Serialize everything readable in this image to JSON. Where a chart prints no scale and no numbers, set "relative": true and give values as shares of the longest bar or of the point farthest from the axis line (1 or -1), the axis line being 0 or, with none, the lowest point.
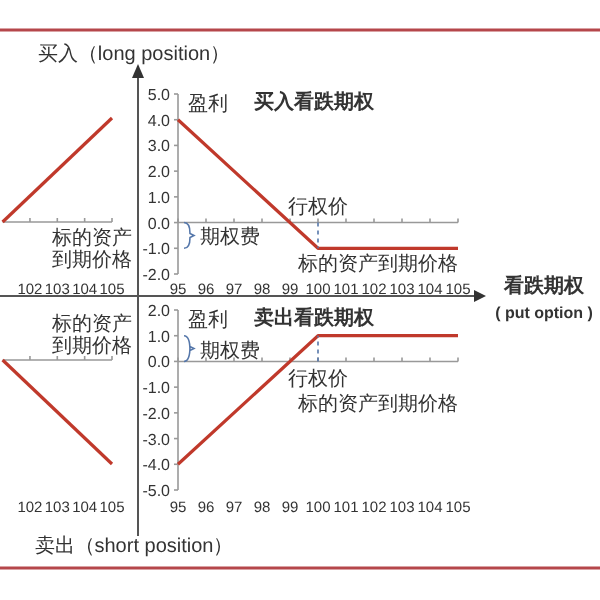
{
  "chart_data": [
    {
      "type": "other",
      "annotations": [
        "买入（long position）",
        "卖出（short position）",
        "看跌期权",
        "( put option )"
      ]
    },
    {
      "type": "line",
      "relative": true,
      "x": [
        101,
        105
      ],
      "xlim": [
        101,
        105
      ],
      "xticks": [
        102,
        103,
        104,
        105
      ],
      "xlabel": "标的资产到期价格",
      "series": [
        {
          "color": "#c0392b",
          "values": [
            0,
            1
          ]
        }
      ]
    },
    {
      "type": "line",
      "title": "买入看跌期权",
      "ylabel": "盈利",
      "xlabel": "标的资产到期价格",
      "x": [
        95,
        100,
        105
      ],
      "xlim": [
        95,
        105
      ],
      "xticks": [
        95,
        96,
        97,
        98,
        99,
        100,
        101,
        102,
        103,
        104,
        105
      ],
      "ylim": [
        -2,
        5
      ],
      "yticks": [
        {
          "value": 5,
          "label": "5.0"
        },
        {
          "value": 4,
          "label": "4.0"
        },
        {
          "value": 3,
          "label": "3.0"
        },
        {
          "value": 2,
          "label": "2.0"
        },
        {
          "value": 1,
          "label": "1.0"
        },
        {
          "value": 0,
          "label": "0.0"
        },
        {
          "value": -1,
          "label": "-1.0"
        },
        {
          "value": -2,
          "label": "-2.0"
        }
      ],
      "series": [
        {
          "color": "#c0392b",
          "values": [
            4,
            -1,
            -1
          ]
        }
      ],
      "annotations": [
        "行权价",
        "期权费"
      ]
    },
    {
      "type": "line",
      "relative": true,
      "x": [
        101,
        105
      ],
      "xlim": [
        101,
        105
      ],
      "xticks": [
        102,
        103,
        104,
        105
      ],
      "xlabel": "标的资产到期价格",
      "series": [
        {
          "color": "#c0392b",
          "values": [
            0,
            -1
          ]
        }
      ]
    },
    {
      "type": "line",
      "title": "卖出看跌期权",
      "ylabel": "盈利",
      "xlabel": "标的资产到期价格",
      "x": [
        95,
        100,
        105
      ],
      "xlim": [
        95,
        105
      ],
      "xticks": [
        95,
        96,
        97,
        98,
        99,
        100,
        101,
        102,
        103,
        104,
        105
      ],
      "ylim": [
        -5,
        2
      ],
      "yticks": [
        {
          "value": 2,
          "label": "2.0"
        },
        {
          "value": 1,
          "label": "1.0"
        },
        {
          "value": 0,
          "label": "0.0"
        },
        {
          "value": -1,
          "label": "-1.0"
        },
        {
          "value": -2,
          "label": "-2.0"
        },
        {
          "value": -3,
          "label": "-3.0"
        },
        {
          "value": -4,
          "label": "-4.0"
        },
        {
          "value": -5,
          "label": "-5.0"
        }
      ],
      "series": [
        {
          "color": "#c0392b",
          "values": [
            -4,
            1,
            1
          ]
        }
      ],
      "annotations": [
        "行权价",
        "期权费"
      ]
    }
  ]
}
